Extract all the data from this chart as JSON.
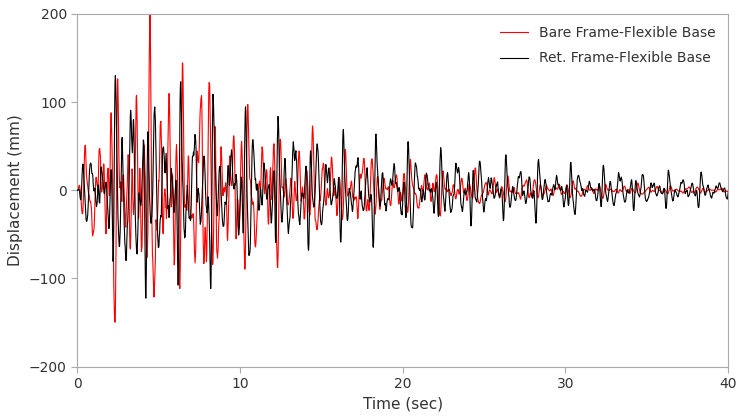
{
  "xlabel": "Time (sec)",
  "ylabel": "Displacement (mm)",
  "xlim": [
    0,
    40
  ],
  "ylim": [
    -200,
    200
  ],
  "xticks": [
    0,
    10,
    20,
    30,
    40
  ],
  "yticks": [
    -200,
    -100,
    0,
    100,
    200
  ],
  "legend": [
    {
      "label": "Bare Frame-Flexible Base",
      "color": "#ff0000",
      "lw": 0.8
    },
    {
      "label": "Ret. Frame-Flexible Base",
      "color": "#000000",
      "lw": 0.8
    }
  ],
  "background_color": "#ffffff",
  "legend_fontsize": 10,
  "tick_fontsize": 10,
  "label_fontsize": 11,
  "spine_color": "#aaaaaa",
  "dt": 0.02,
  "duration": 40.0
}
